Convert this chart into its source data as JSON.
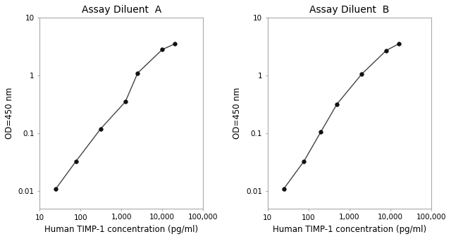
{
  "panel_A": {
    "title": "Assay Diluent  A",
    "x": [
      25,
      78,
      313,
      1250,
      2500,
      10000,
      20000
    ],
    "y": [
      0.011,
      0.033,
      0.12,
      0.35,
      1.1,
      2.8,
      3.5
    ],
    "xlabel": "Human TIMP-1 concentration (pg/ml)",
    "ylabel": "OD=450 nm",
    "xlim": [
      10,
      100000
    ],
    "ylim": [
      0.005,
      10
    ]
  },
  "panel_B": {
    "title": "Assay Diluent  B",
    "x": [
      25,
      78,
      200,
      500,
      2000,
      8000,
      16000
    ],
    "y": [
      0.011,
      0.033,
      0.105,
      0.32,
      1.05,
      2.7,
      3.5
    ],
    "xlabel": "Human TIMP-1 concentration (pg/ml)",
    "ylabel": "OD=450 nm",
    "xlim": [
      10,
      100000
    ],
    "ylim": [
      0.005,
      10
    ]
  },
  "line_color": "#444444",
  "marker_color": "#111111",
  "bg_color": "#ffffff",
  "title_fontsize": 10,
  "label_fontsize": 8.5,
  "tick_fontsize": 7.5
}
